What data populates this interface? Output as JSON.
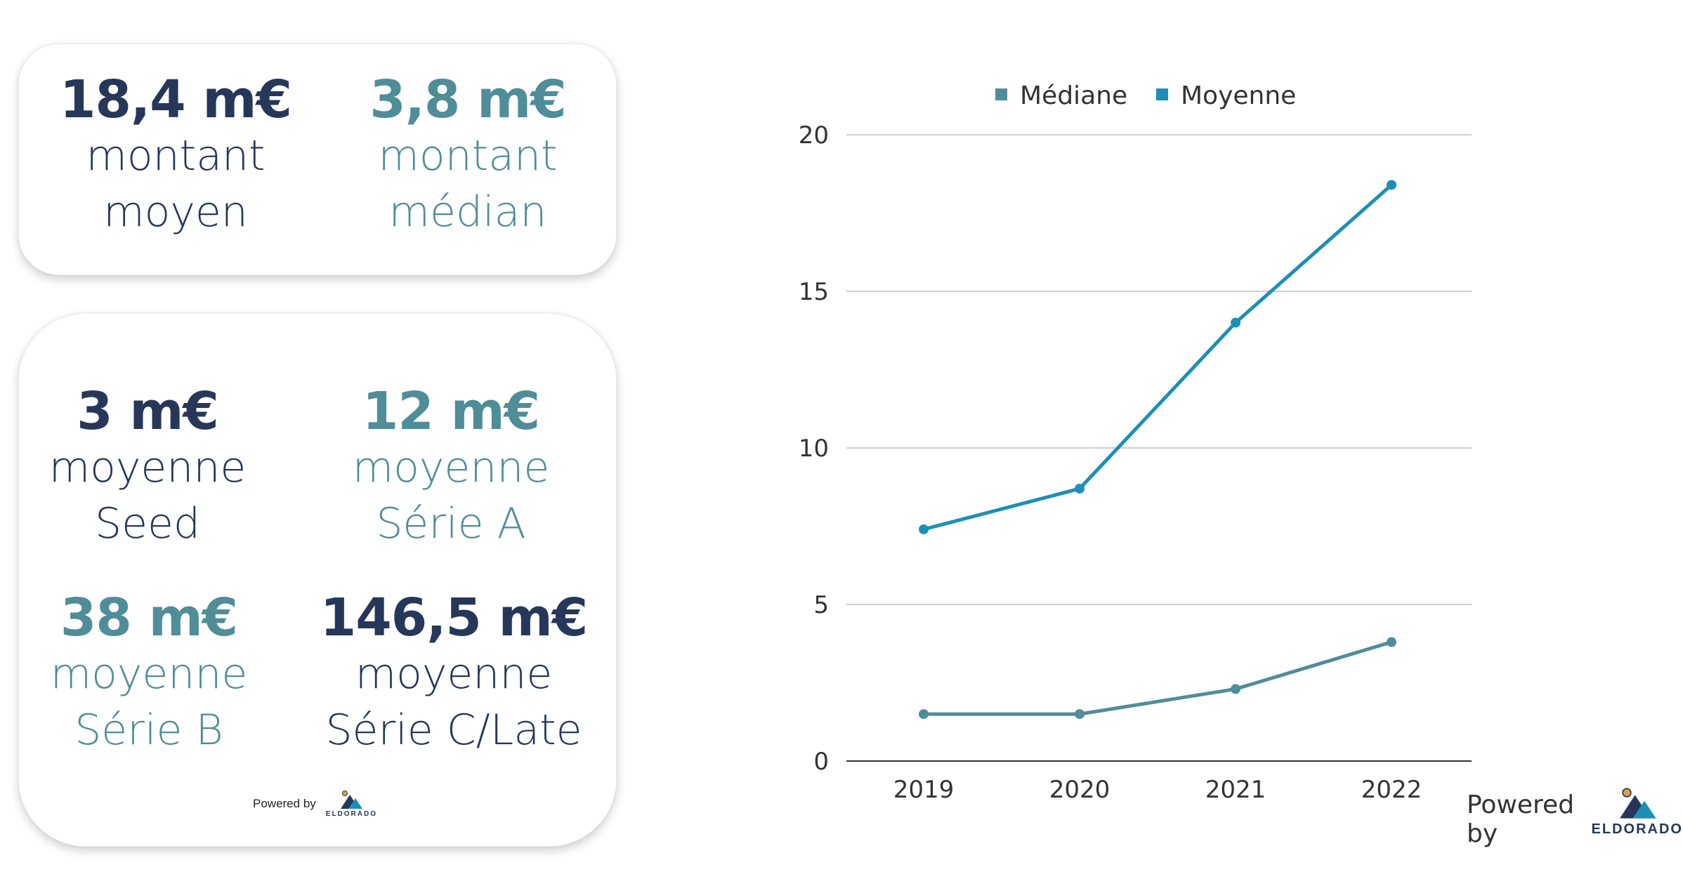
{
  "summary": {
    "mean": {
      "value": "18,4 m€",
      "label_lines": [
        "montant",
        "moyen"
      ]
    },
    "median": {
      "value": "3,8 m€",
      "label_lines": [
        "montant",
        "médian"
      ]
    }
  },
  "rounds": {
    "seed": {
      "value": "3 m€",
      "label_lines": [
        "moyenne",
        "Seed"
      ]
    },
    "series_a": {
      "value": "12 m€",
      "label_lines": [
        "moyenne",
        "Série A"
      ]
    },
    "series_b": {
      "value": "38 m€",
      "label_lines": [
        "moyenne",
        "Série B"
      ]
    },
    "series_c": {
      "value": "146,5 m€",
      "label_lines": [
        "moyenne",
        "Série C/Late"
      ]
    }
  },
  "powered_by": "Powered by",
  "brand": "ELDORADO",
  "colors": {
    "navy": "#27375a",
    "teal": "#4f8d98",
    "blue": "#1b8fb8",
    "logo_sun": "#e0a340"
  },
  "chart_data": {
    "type": "line",
    "x": [
      "2019",
      "2020",
      "2021",
      "2022"
    ],
    "series": [
      {
        "name": "Médiane",
        "values": [
          1.5,
          1.5,
          2.3,
          3.8
        ],
        "color": "#4f8d98"
      },
      {
        "name": "Moyenne",
        "values": [
          7.4,
          8.7,
          14.0,
          18.4
        ],
        "color": "#1b8fb8"
      }
    ],
    "y_ticks": [
      0,
      5,
      10,
      15,
      20
    ],
    "ylim": [
      0,
      20
    ],
    "grid": true,
    "legend_position": "top-center"
  }
}
